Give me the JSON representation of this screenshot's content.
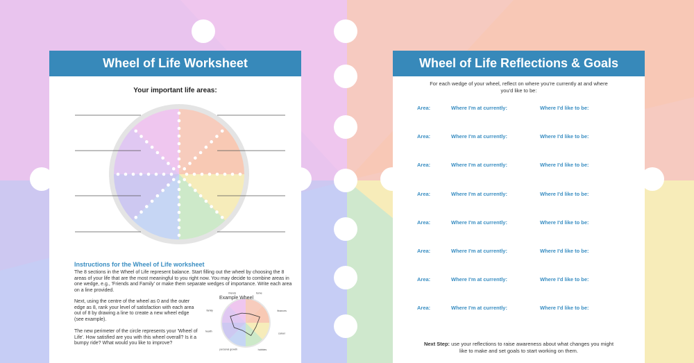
{
  "worksheet": {
    "title": "Wheel of Life Worksheet",
    "subtitle": "Your important life areas:",
    "instructions_heading": "Instructions for the Wheel of Life worksheet",
    "paragraphs": [
      "The 8 sections in the Wheel of Life represent balance. Start filling out the wheel by choosing the 8 areas of your life that are the most meaningful to you right now. You may decide to combine areas in one wedge, e.g., 'Friends and Family' or make them separate wedges of importance. Write each area on a line provided.",
      "Next, using the centre of the wheel as 0 and the outer edge as 8, rank your level of satisfaction with each area out of 8 by drawing a line to create a new wheel edge (see example).",
      "The new perimeter of the circle represents your 'Wheel of Life'. How satisfied are you with this wheel overall? Is it a bumpy ride? What would you like to improve?"
    ],
    "example": {
      "title": "Example Wheel",
      "labels": [
        "friends",
        "home",
        "finances",
        "career",
        "hobbies",
        "personal growth",
        "health",
        "family"
      ]
    }
  },
  "reflections": {
    "title": "Wheel of Life Reflections & Goals",
    "intro": "For each wedge of your wheel, reflect on where you're currently at and where you'd like to be:",
    "rows": [
      {
        "area": "Area:",
        "current": "Where I'm at currently:",
        "goal": "Where I'd like to be:"
      },
      {
        "area": "Area:",
        "current": "Where I'm at currently:",
        "goal": "Where I'd like to be:"
      },
      {
        "area": "Area:",
        "current": "Where I'm at currently:",
        "goal": "Where I'd like to be:"
      },
      {
        "area": "Area:",
        "current": "Where I'm at currently:",
        "goal": "Where I'd like to be:"
      },
      {
        "area": "Area:",
        "current": "Where I'm at currently:",
        "goal": "Where I'd like to be:"
      },
      {
        "area": "Area:",
        "current": "Where I'm at currently:",
        "goal": "Where I'd like to be:"
      },
      {
        "area": "Area:",
        "current": "Where I'm at currently:",
        "goal": "Where I'd like to be:"
      },
      {
        "area": "Area:",
        "current": "Where I'm at currently:",
        "goal": "Where I'd like to be:"
      }
    ],
    "next_step_label": "Next Step:",
    "next_step_text": "use your reflections to raise awareness about what changes you might like to make and set goals to start working on them."
  }
}
